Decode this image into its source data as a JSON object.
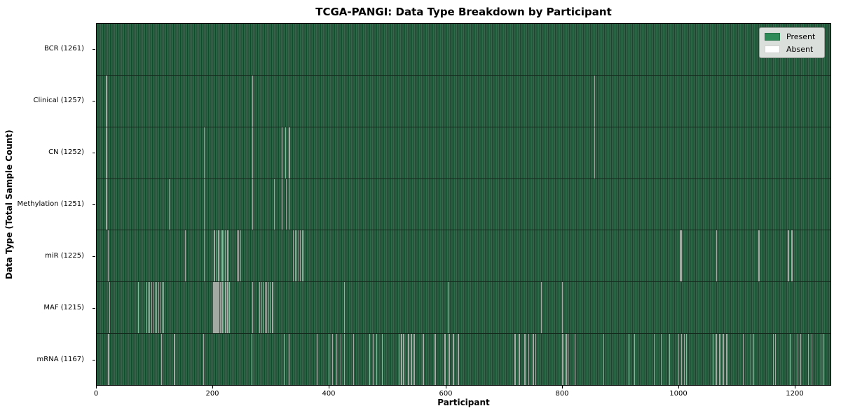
{
  "chart_data": {
    "type": "heatmap",
    "title": "TCGA-PANGI: Data Type Breakdown by Participant",
    "xlabel": "Participant",
    "ylabel": "Data Type (Total Sample Count)",
    "x_ticks": [
      0,
      200,
      400,
      600,
      800,
      1000,
      1200
    ],
    "x_max": 1262,
    "total_participants": 1261,
    "grid": false,
    "legend_position": "upper right",
    "colors": {
      "present": "#2e8b57",
      "absent": "#ffffff",
      "absent_line": "#a3a9a3",
      "row_dark_edge": "#1e432f"
    },
    "legend": [
      {
        "label": "Present",
        "color": "#2e8b57"
      },
      {
        "label": "Absent",
        "color": "#ffffff"
      }
    ],
    "rows": [
      {
        "label": "BCR (1261)",
        "data_type": "bcr",
        "count": 1261,
        "absent": []
      },
      {
        "label": "Clinical (1257)",
        "data_type": "clinical",
        "count": 1257,
        "absent": [
          16,
          17,
          268,
          856
        ]
      },
      {
        "label": "CN (1252)",
        "data_type": "cn",
        "count": 1252,
        "absent": [
          16,
          17,
          185,
          268,
          318,
          324,
          330,
          331,
          856
        ]
      },
      {
        "label": "Methylation (1251)",
        "data_type": "methylation",
        "count": 1251,
        "absent": [
          16,
          17,
          124,
          185,
          268,
          305,
          318,
          325,
          331,
          332
        ]
      },
      {
        "label": "miR (1225)",
        "data_type": "mir",
        "count": 1225,
        "absent": [
          19,
          152,
          185,
          201,
          203,
          206,
          208,
          210,
          213,
          216,
          218,
          221,
          224,
          226,
          241,
          244,
          247,
          338,
          341,
          344,
          347,
          350,
          353,
          356,
          1003,
          1004,
          1005,
          1065,
          1066,
          1138,
          1139,
          1189,
          1190,
          1194,
          1195,
          1196
        ]
      },
      {
        "label": "MAF (1215)",
        "data_type": "maf",
        "count": 1215,
        "absent": [
          22,
          71,
          85,
          88,
          91,
          94,
          97,
          100,
          103,
          106,
          109,
          112,
          115,
          200,
          201,
          202,
          203,
          204,
          205,
          206,
          207,
          208,
          210,
          212,
          214,
          216,
          218,
          220,
          222,
          224,
          226,
          228,
          268,
          280,
          283,
          286,
          289,
          292,
          295,
          298,
          301,
          303,
          425,
          604,
          764,
          800
        ]
      },
      {
        "label": "mRNA (1167)",
        "data_type": "mrna",
        "count": 1167,
        "absent": [
          19,
          20,
          111,
          133,
          134,
          183,
          266,
          322,
          330,
          378,
          399,
          405,
          412,
          420,
          425,
          441,
          469,
          475,
          481,
          490,
          519,
          520,
          523,
          524,
          527,
          528,
          535,
          536,
          540,
          541,
          545,
          546,
          561,
          562,
          581,
          582,
          598,
          599,
          605,
          606,
          612,
          613,
          621,
          622,
          718,
          719,
          726,
          727,
          735,
          736,
          742,
          743,
          750,
          751,
          754,
          755,
          800,
          801,
          806,
          807,
          810,
          822,
          872,
          915,
          925,
          958,
          970,
          985,
          1000,
          1005,
          1010,
          1014,
          1059,
          1060,
          1064,
          1065,
          1070,
          1071,
          1076,
          1077,
          1083,
          1084,
          1111,
          1125,
          1130,
          1163,
          1167,
          1192,
          1205,
          1210,
          1223,
          1229,
          1245,
          1250
        ]
      }
    ]
  }
}
